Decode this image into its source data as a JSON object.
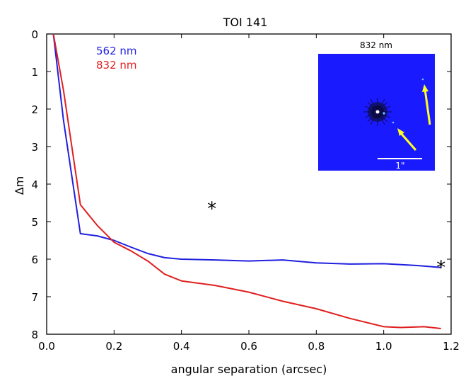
{
  "chart_data": {
    "type": "line",
    "title": "TOI 141",
    "xlabel": "angular separation (arcsec)",
    "ylabel": "Δm",
    "xlim": [
      0.0,
      1.2
    ],
    "ylim": [
      0,
      8
    ],
    "y_inverted": true,
    "grid": false,
    "legend_position": "top-left",
    "xticks": [
      "0.0",
      "0.2",
      "0.4",
      "0.6",
      "0.8",
      "1.0",
      "1.2"
    ],
    "yticks": [
      "0",
      "1",
      "2",
      "3",
      "4",
      "5",
      "6",
      "7",
      "8"
    ],
    "series": [
      {
        "name": "562 nm",
        "color": "#1f1fe0",
        "x": [
          0.02,
          0.05,
          0.1,
          0.15,
          0.2,
          0.25,
          0.3,
          0.35,
          0.4,
          0.5,
          0.6,
          0.7,
          0.8,
          0.9,
          1.0,
          1.1,
          1.17
        ],
        "y": [
          0.0,
          2.3,
          5.32,
          5.38,
          5.5,
          5.68,
          5.85,
          5.96,
          6.0,
          6.02,
          6.05,
          6.02,
          6.1,
          6.13,
          6.12,
          6.17,
          6.22
        ]
      },
      {
        "name": "832 nm",
        "color": "#e01f1f",
        "x": [
          0.02,
          0.05,
          0.1,
          0.15,
          0.2,
          0.25,
          0.3,
          0.35,
          0.4,
          0.5,
          0.6,
          0.7,
          0.8,
          0.9,
          1.0,
          1.05,
          1.12,
          1.17
        ],
        "y": [
          0.0,
          1.5,
          4.55,
          5.1,
          5.55,
          5.78,
          6.05,
          6.4,
          6.58,
          6.7,
          6.88,
          7.12,
          7.32,
          7.58,
          7.8,
          7.82,
          7.8,
          7.85
        ]
      }
    ],
    "markers": [
      {
        "symbol": "★",
        "x": 0.49,
        "y": 4.65
      },
      {
        "symbol": "★",
        "x": 1.17,
        "y": 6.22
      }
    ],
    "inset": {
      "title": "832 nm",
      "scale_bar_label": "1\""
    }
  },
  "colors": {
    "inset_background": "#1a1aff",
    "arrow": "#ffff22"
  }
}
